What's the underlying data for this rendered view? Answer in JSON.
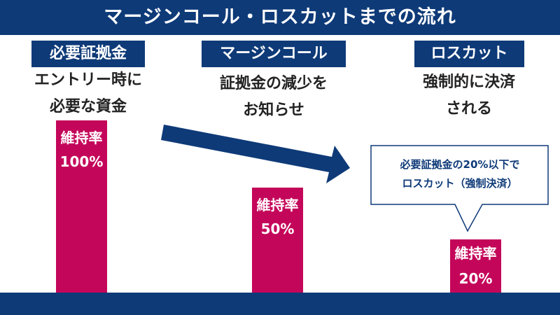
{
  "title": "マージンコール・ロスカットまでの流れ",
  "columns": [
    {
      "label": "必要証拠金",
      "desc": [
        "エントリー時に",
        "必要な資金"
      ],
      "bar_title": "維持率",
      "bar_value": "100%",
      "ratio_percent": 100
    },
    {
      "label": "マージンコール",
      "desc": [
        "証拠金の減少を",
        "お知らせ"
      ],
      "bar_title": "維持率",
      "bar_value": "50%",
      "ratio_percent": 50
    },
    {
      "label": "ロスカット",
      "desc": [
        "強制的に決済",
        "される"
      ],
      "bar_title": "維持率",
      "bar_value": "20%",
      "ratio_percent": 20
    }
  ],
  "callout": [
    "必要証拠金の20%以下で",
    "ロスカット（強制決済）"
  ],
  "colors": {
    "navy": "#0e3a78",
    "magenta": "#c4065a"
  }
}
